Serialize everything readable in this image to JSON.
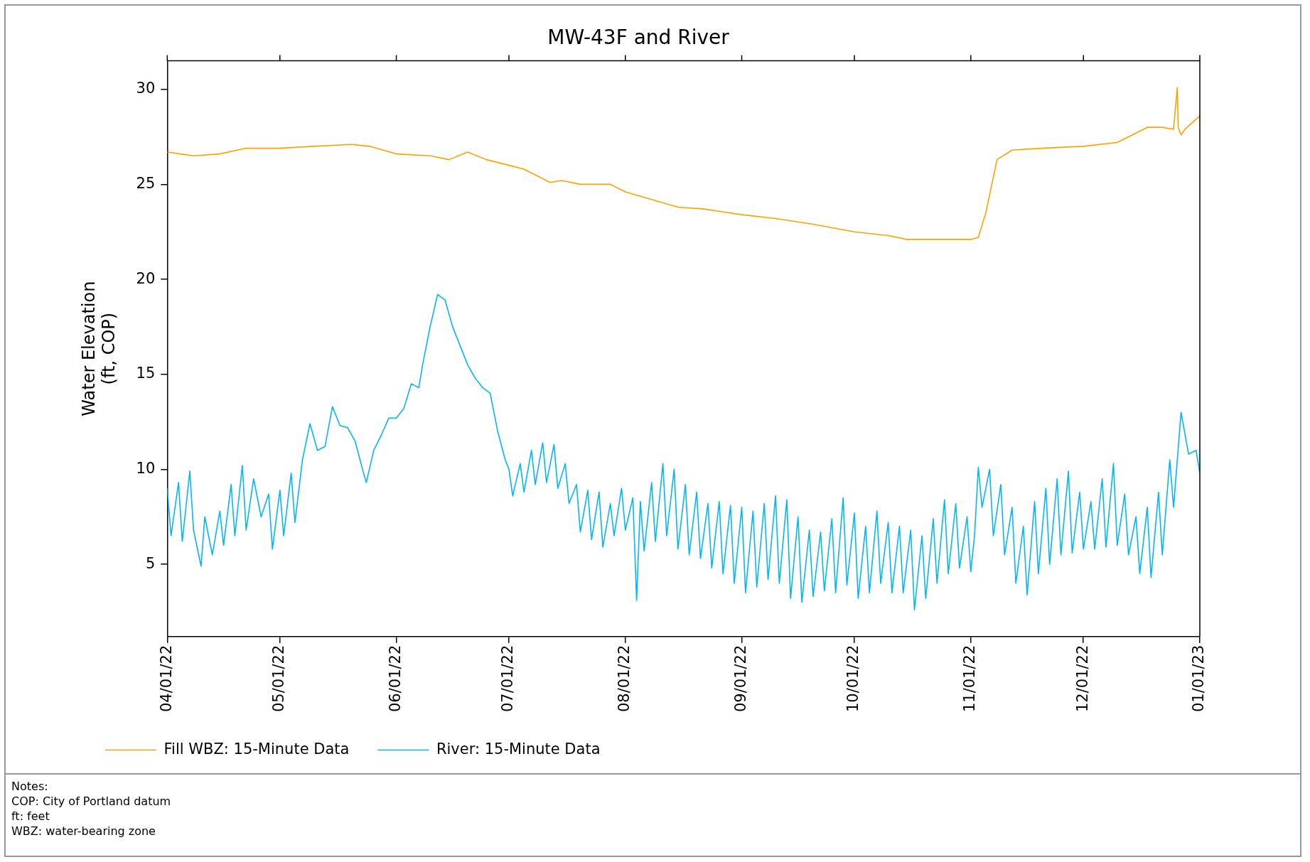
{
  "chart_data": {
    "type": "line",
    "title": "MW-43F and River",
    "ylabel": "Water Elevation\n(ft, COP)",
    "xlim": [
      "2022-04-01",
      "2023-01-01"
    ],
    "xticks": [
      {
        "value": "2022-04-01",
        "label": "04/01/22"
      },
      {
        "value": "2022-05-01",
        "label": "05/01/22"
      },
      {
        "value": "2022-06-01",
        "label": "06/01/22"
      },
      {
        "value": "2022-07-01",
        "label": "07/01/22"
      },
      {
        "value": "2022-08-01",
        "label": "08/01/22"
      },
      {
        "value": "2022-09-01",
        "label": "09/01/22"
      },
      {
        "value": "2022-10-01",
        "label": "10/01/22"
      },
      {
        "value": "2022-11-01",
        "label": "11/01/22"
      },
      {
        "value": "2022-12-01",
        "label": "12/01/22"
      },
      {
        "value": "2023-01-01",
        "label": "01/01/23"
      }
    ],
    "ylim": [
      1.2,
      31.5
    ],
    "yticks": [
      5,
      10,
      15,
      20,
      25,
      30
    ],
    "grid": false,
    "legend": "bottom",
    "marker": "none",
    "line_style": "solid",
    "annotations": [
      "Notes:",
      "COP: City of Portland datum",
      "ft: feet",
      "WBZ: water-bearing zone"
    ],
    "series": [
      {
        "name": "Fill WBZ: 15-Minute Data",
        "color": "#ffa200",
        "x": [
          "2022-04-01",
          "2022-04-08",
          "2022-04-15",
          "2022-04-22",
          "2022-05-01",
          "2022-05-10",
          "2022-05-20",
          "2022-05-25",
          "2022-06-01",
          "2022-06-10",
          "2022-06-15",
          "2022-06-20",
          "2022-06-25",
          "2022-07-01",
          "2022-07-05",
          "2022-07-12",
          "2022-07-15",
          "2022-07-20",
          "2022-07-28",
          "2022-08-01",
          "2022-08-08",
          "2022-08-15",
          "2022-08-22",
          "2022-09-01",
          "2022-09-10",
          "2022-09-20",
          "2022-10-01",
          "2022-10-10",
          "2022-10-15",
          "2022-10-25",
          "2022-11-01",
          "2022-11-03",
          "2022-11-05",
          "2022-11-08",
          "2022-11-12",
          "2022-11-20",
          "2022-12-01",
          "2022-12-10",
          "2022-12-18",
          "2022-12-22",
          "2022-12-25",
          "2022-12-26",
          "2022-12-26T06:00",
          "2022-12-27",
          "2022-12-28",
          "2023-01-01"
        ],
        "values": [
          26.7,
          26.5,
          26.6,
          26.9,
          26.9,
          27.0,
          27.1,
          27.0,
          26.6,
          26.5,
          26.3,
          26.7,
          26.3,
          26.0,
          25.8,
          25.1,
          25.2,
          25.0,
          25.0,
          24.6,
          24.2,
          23.8,
          23.7,
          23.4,
          23.2,
          22.9,
          22.5,
          22.3,
          22.1,
          22.1,
          22.1,
          22.2,
          23.5,
          26.3,
          26.8,
          26.9,
          27.0,
          27.2,
          28.0,
          28.0,
          27.9,
          30.1,
          28.0,
          27.6,
          27.9,
          28.6
        ]
      },
      {
        "name": "River: 15-Minute Data",
        "color": "#00b7ff",
        "x": [
          "2022-04-01",
          "2022-04-02",
          "2022-04-04",
          "2022-04-05",
          "2022-04-07",
          "2022-04-08",
          "2022-04-10",
          "2022-04-11",
          "2022-04-13",
          "2022-04-15",
          "2022-04-16",
          "2022-04-18",
          "2022-04-19",
          "2022-04-21",
          "2022-04-22",
          "2022-04-24",
          "2022-04-26",
          "2022-04-28",
          "2022-04-29",
          "2022-05-01",
          "2022-05-02",
          "2022-05-04",
          "2022-05-05",
          "2022-05-07",
          "2022-05-09",
          "2022-05-11",
          "2022-05-13",
          "2022-05-15",
          "2022-05-17",
          "2022-05-19",
          "2022-05-21",
          "2022-05-23",
          "2022-05-24",
          "2022-05-26",
          "2022-05-28",
          "2022-05-30",
          "2022-06-01",
          "2022-06-03",
          "2022-06-05",
          "2022-06-07",
          "2022-06-08",
          "2022-06-10",
          "2022-06-12",
          "2022-06-14",
          "2022-06-16",
          "2022-06-18",
          "2022-06-20",
          "2022-06-22",
          "2022-06-24",
          "2022-06-26",
          "2022-06-28",
          "2022-06-30",
          "2022-07-01",
          "2022-07-02",
          "2022-07-04",
          "2022-07-05",
          "2022-07-07",
          "2022-07-08",
          "2022-07-10",
          "2022-07-11",
          "2022-07-13",
          "2022-07-14",
          "2022-07-16",
          "2022-07-17",
          "2022-07-19",
          "2022-07-20",
          "2022-07-22",
          "2022-07-23",
          "2022-07-25",
          "2022-07-26",
          "2022-07-28",
          "2022-07-29",
          "2022-07-31",
          "2022-08-01",
          "2022-08-03",
          "2022-08-04",
          "2022-08-05",
          "2022-08-06",
          "2022-08-08",
          "2022-08-09",
          "2022-08-11",
          "2022-08-12",
          "2022-08-14",
          "2022-08-15",
          "2022-08-17",
          "2022-08-18",
          "2022-08-20",
          "2022-08-21",
          "2022-08-23",
          "2022-08-24",
          "2022-08-26",
          "2022-08-27",
          "2022-08-29",
          "2022-08-30",
          "2022-09-01",
          "2022-09-02",
          "2022-09-04",
          "2022-09-05",
          "2022-09-07",
          "2022-09-08",
          "2022-09-10",
          "2022-09-11",
          "2022-09-13",
          "2022-09-14",
          "2022-09-16",
          "2022-09-17",
          "2022-09-19",
          "2022-09-20",
          "2022-09-22",
          "2022-09-23",
          "2022-09-25",
          "2022-09-26",
          "2022-09-28",
          "2022-09-29",
          "2022-10-01",
          "2022-10-02",
          "2022-10-04",
          "2022-10-05",
          "2022-10-07",
          "2022-10-08",
          "2022-10-10",
          "2022-10-11",
          "2022-10-13",
          "2022-10-14",
          "2022-10-16",
          "2022-10-17",
          "2022-10-19",
          "2022-10-20",
          "2022-10-22",
          "2022-10-23",
          "2022-10-25",
          "2022-10-26",
          "2022-10-28",
          "2022-10-29",
          "2022-10-31",
          "2022-11-01",
          "2022-11-02",
          "2022-11-03",
          "2022-11-04",
          "2022-11-06",
          "2022-11-07",
          "2022-11-09",
          "2022-11-10",
          "2022-11-12",
          "2022-11-13",
          "2022-11-15",
          "2022-11-16",
          "2022-11-18",
          "2022-11-19",
          "2022-11-21",
          "2022-11-22",
          "2022-11-24",
          "2022-11-25",
          "2022-11-27",
          "2022-11-28",
          "2022-11-30",
          "2022-12-01",
          "2022-12-03",
          "2022-12-04",
          "2022-12-06",
          "2022-12-07",
          "2022-12-09",
          "2022-12-10",
          "2022-12-12",
          "2022-12-13",
          "2022-12-15",
          "2022-12-16",
          "2022-12-18",
          "2022-12-19",
          "2022-12-21",
          "2022-12-22",
          "2022-12-24",
          "2022-12-25",
          "2022-12-27",
          "2022-12-29",
          "2022-12-31",
          "2023-01-01"
        ],
        "values": [
          9.0,
          6.5,
          9.3,
          6.2,
          9.9,
          6.8,
          4.9,
          7.5,
          5.5,
          7.8,
          6.0,
          9.2,
          6.5,
          10.2,
          6.8,
          9.5,
          7.5,
          8.7,
          5.8,
          8.9,
          6.5,
          9.8,
          7.2,
          10.5,
          12.4,
          11.0,
          11.2,
          13.3,
          12.3,
          12.2,
          11.5,
          10.0,
          9.3,
          11.0,
          11.8,
          12.7,
          12.7,
          13.2,
          14.5,
          14.3,
          15.5,
          17.5,
          19.2,
          18.9,
          17.5,
          16.5,
          15.5,
          14.8,
          14.3,
          14.0,
          12.0,
          10.5,
          10.0,
          8.6,
          10.3,
          8.8,
          11.0,
          9.2,
          11.4,
          9.3,
          11.3,
          9.0,
          10.3,
          8.2,
          9.2,
          6.7,
          8.9,
          6.3,
          8.8,
          5.9,
          8.2,
          6.5,
          9.0,
          6.8,
          8.5,
          3.1,
          8.3,
          5.7,
          9.3,
          6.2,
          10.3,
          6.5,
          10.0,
          5.8,
          9.2,
          5.5,
          8.8,
          5.3,
          8.2,
          4.8,
          8.3,
          4.5,
          8.1,
          4.0,
          8.0,
          3.5,
          7.8,
          3.8,
          8.2,
          4.2,
          8.6,
          4.0,
          8.4,
          3.2,
          7.5,
          3.0,
          6.8,
          3.3,
          6.7,
          3.6,
          7.4,
          3.5,
          8.5,
          3.9,
          7.7,
          3.2,
          7.0,
          3.5,
          7.8,
          4.0,
          7.2,
          3.5,
          7.0,
          3.5,
          6.8,
          2.6,
          6.5,
          3.2,
          7.4,
          4.0,
          8.4,
          4.5,
          8.2,
          4.8,
          7.5,
          4.6,
          6.5,
          10.1,
          8.0,
          10.0,
          6.5,
          9.2,
          5.5,
          8.0,
          4.0,
          7.0,
          3.4,
          8.3,
          4.5,
          9.0,
          5.0,
          9.5,
          5.5,
          9.9,
          5.6,
          8.8,
          5.8,
          8.3,
          5.8,
          9.5,
          5.9,
          10.3,
          6.0,
          8.7,
          5.5,
          7.5,
          4.5,
          8.0,
          4.3,
          8.8,
          5.5,
          10.5,
          8.0,
          13.0,
          10.8,
          11.0,
          9.8
        ]
      }
    ]
  }
}
